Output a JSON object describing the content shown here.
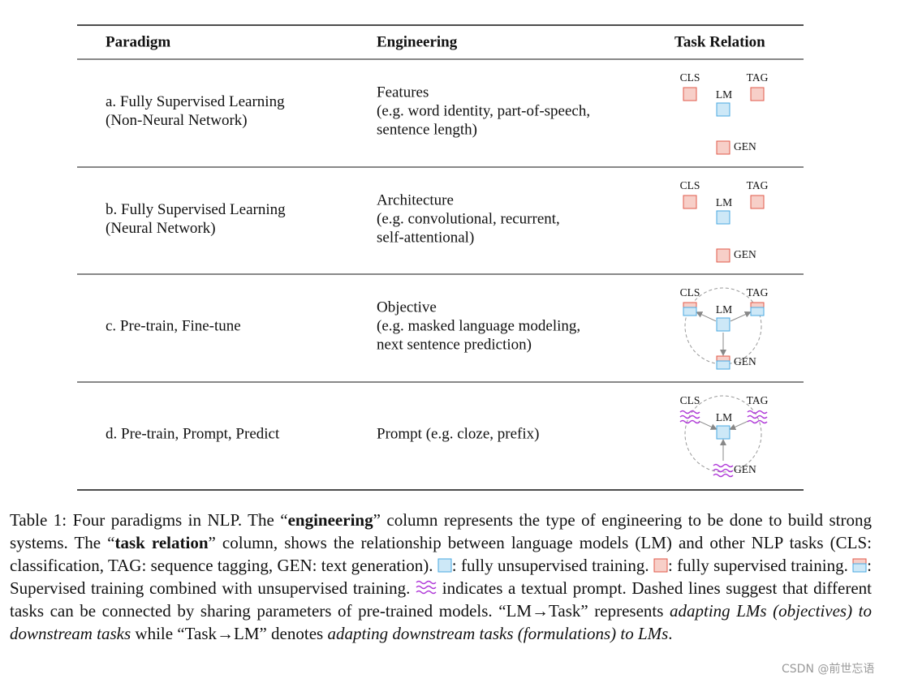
{
  "table": {
    "header": [
      "Paradigm",
      "Engineering",
      "Task Relation"
    ],
    "rows": [
      {
        "paradigm": [
          "a. Fully Supervised Learning",
          "(Non-Neural Network)"
        ],
        "engineering": [
          "Features",
          "(e.g. word identity, part-of-speech,",
          "sentence length)"
        ]
      },
      {
        "paradigm": [
          "b. Fully Supervised Learning",
          "(Neural Network)"
        ],
        "engineering": [
          "Architecture",
          "(e.g. convolutional, recurrent,",
          "self-attentional)"
        ]
      },
      {
        "paradigm": [
          "c. Pre-train, Fine-tune"
        ],
        "engineering": [
          "Objective",
          "(e.g. masked language modeling,",
          "next sentence prediction)"
        ]
      },
      {
        "paradigm": [
          "d. Pre-train, Prompt, Predict"
        ],
        "engineering": [
          "Prompt (e.g. cloze, prefix)"
        ]
      }
    ],
    "task_labels": {
      "cls": "CLS",
      "tag": "TAG",
      "lm": "LM",
      "gen": "GEN"
    }
  },
  "caption": [
    "Table 1: Four paradigms in NLP. The “",
    "engineering",
    "” column represents the type of engineering to be done to build strong systems. The “",
    "task relation",
    "” column, shows the relationship between language models (LM) and other NLP tasks (CLS: classification, TAG: sequence tagging, GEN: text generation). ",
    ": fully unsupervised training. ",
    ": fully supervised training. ",
    ": Supervised training combined with unsupervised training. ",
    " indicates a textual prompt. Dashed lines suggest that different tasks can be connected by sharing parameters of pre-trained models. “LM→Task” represents ",
    "adapting LMs (objectives) to downstream tasks",
    " while “Task→LM” denotes ",
    "adapting downstream tasks (formulations) to LMs",
    "."
  ],
  "watermark": "CSDN @前世忘语"
}
